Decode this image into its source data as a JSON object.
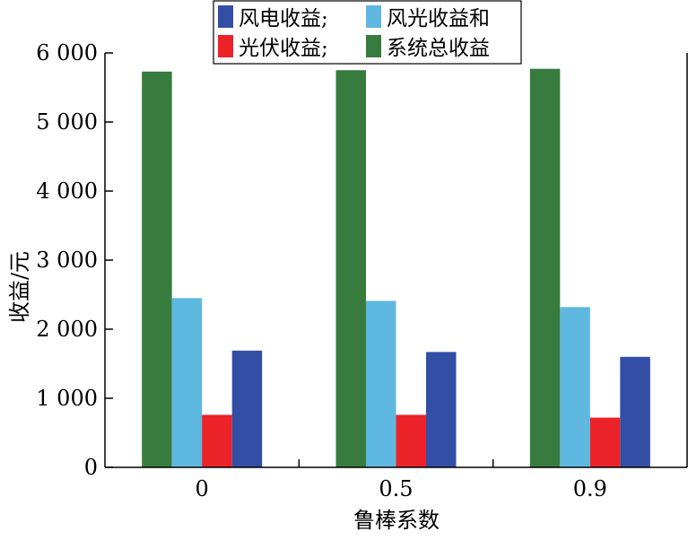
{
  "chart_data": {
    "type": "bar",
    "title": "",
    "xlabel": "鲁棒系数",
    "ylabel": "收益/元",
    "categories": [
      "0",
      "0.5",
      "0.9"
    ],
    "ylim": [
      0,
      6000
    ],
    "yticks": [
      0,
      1000,
      2000,
      3000,
      4000,
      5000,
      6000
    ],
    "ytick_labels": [
      "0",
      "1 000",
      "2 000",
      "3 000",
      "4 000",
      "5 000",
      "6 000"
    ],
    "grid": false,
    "legend_position": "top-center",
    "series": [
      {
        "name": "系统总收益",
        "color": "#377c3e",
        "values": [
          5730,
          5750,
          5770
        ]
      },
      {
        "name": "风光收益和",
        "color": "#5fb8df",
        "values": [
          2450,
          2410,
          2320
        ]
      },
      {
        "name": "光伏收益",
        "color": "#ec2229",
        "values": [
          760,
          760,
          720
        ]
      },
      {
        "name": "风电收益",
        "color": "#334ea5",
        "values": [
          1690,
          1670,
          1600
        ]
      }
    ],
    "legend_rows": [
      [
        {
          "series": 3,
          "label": "风电收益;"
        },
        {
          "series": 1,
          "label": "风光收益和"
        }
      ],
      [
        {
          "series": 2,
          "label": "光伏收益;"
        },
        {
          "series": 0,
          "label": "系统总收益"
        }
      ]
    ]
  }
}
